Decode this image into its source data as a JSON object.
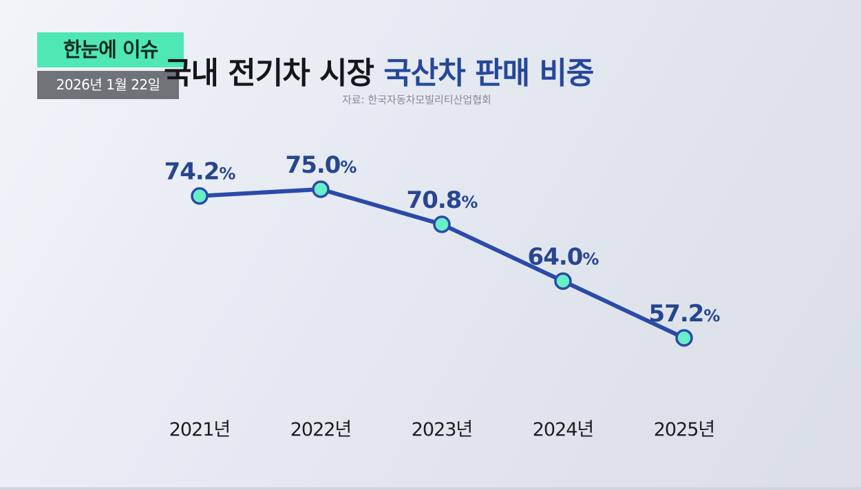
{
  "badge": {
    "label": "한눈에 이슈",
    "color": "#4fe7b4"
  },
  "date_badge": {
    "label": "2026년 1월 22일"
  },
  "title": {
    "part1": "국내 전기차 시장 ",
    "part2": "국산차 판매 비중"
  },
  "source": "자료: 한국자동차모빌리티산업협회",
  "colors": {
    "line": "#2b4aa8",
    "marker_fill": "#68efc8",
    "value_text": "#27468f",
    "year_text": "#1c1c1c"
  },
  "chart_data": {
    "type": "line",
    "categories": [
      "2021년",
      "2022년",
      "2023년",
      "2024년",
      "2025년"
    ],
    "series": [
      {
        "values": [
          74.2,
          75.0,
          70.8,
          64.0,
          57.2
        ],
        "labels": [
          "74.2",
          "75.0",
          "70.8",
          "64.0",
          "57.2"
        ]
      }
    ],
    "value_suffix": "%",
    "unit": "%",
    "ylim": [
      57.2,
      75.0
    ],
    "grid": false,
    "legend": "none"
  }
}
